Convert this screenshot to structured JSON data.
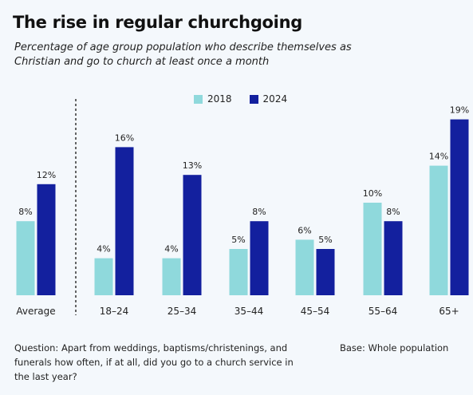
{
  "header": {
    "title": "The rise in regular churchgoing",
    "subtitle": "Percentage of age group population who describe themselves as Christian and go to church at least once a month"
  },
  "footer": {
    "question": "Question: Apart from weddings, baptisms/christenings, and funerals how often, if at all, did you go to a church service in the last year?",
    "base": "Base: Whole population"
  },
  "colors": {
    "series_2018": "#8fd9dc",
    "series_2024": "#13209e",
    "divider": "#333333"
  },
  "chart_data": {
    "type": "bar",
    "title": "The rise in regular churchgoing",
    "subtitle": "Percentage of age group population who describe themselves as Christian and go to church at least once a month",
    "categories": [
      "Average",
      "18–24",
      "25–34",
      "35–44",
      "45–54",
      "55–64",
      "65+"
    ],
    "series": [
      {
        "name": "2018",
        "values": [
          8,
          4,
          4,
          5,
          6,
          10,
          14
        ],
        "labels": [
          "8%",
          "4%",
          "4%",
          "5%",
          "6%",
          "10%",
          "14%"
        ]
      },
      {
        "name": "2024",
        "values": [
          12,
          16,
          13,
          8,
          5,
          8,
          19
        ],
        "labels": [
          "12%",
          "16%",
          "13%",
          "8%",
          "5%",
          "8%",
          "19%"
        ]
      }
    ],
    "ylim": [
      0,
      20
    ],
    "grid": false,
    "legend": "top-center",
    "divider_after_category": "Average"
  }
}
